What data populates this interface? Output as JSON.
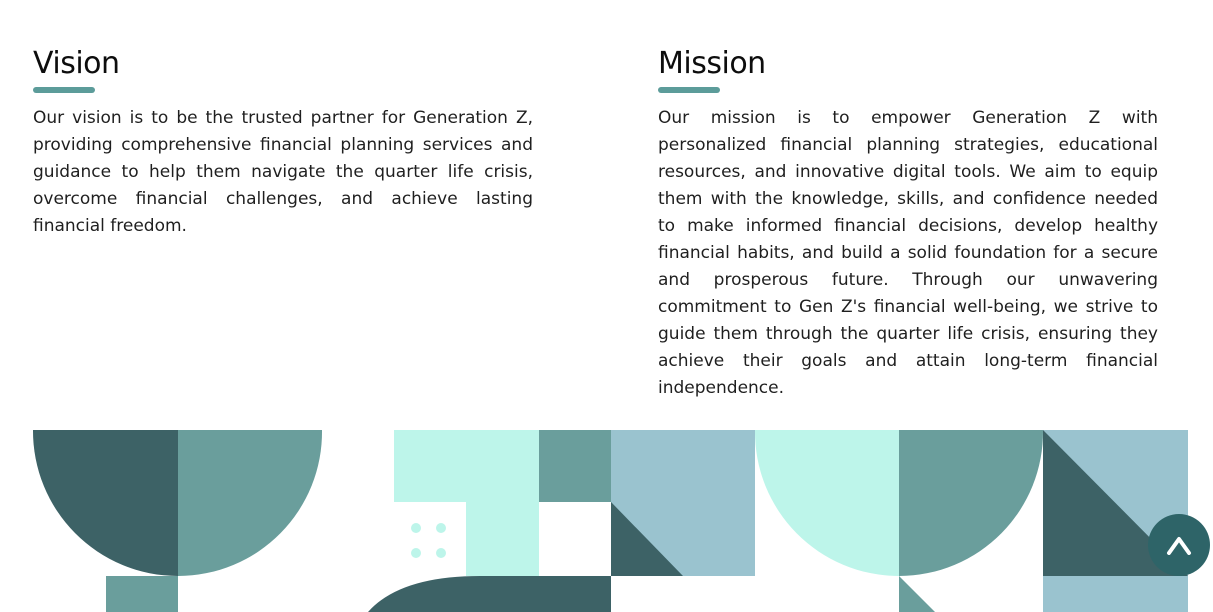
{
  "vision": {
    "title": "Vision",
    "text": "Our vision is to be the trusted partner for Generation Z, providing comprehensive financial planning services and guidance to help them navigate the quarter life crisis, overcome financial challenges, and achieve lasting financial freedom."
  },
  "mission": {
    "title": "Mission",
    "text": "Our mission is to empower Generation Z with personalized financial planning strategies, educational resources, and innovative digital tools. We aim to equip them with the knowledge, skills, and confidence needed to make informed financial decisions, develop healthy financial habits, and build a solid foundation for a secure and prosperous future. Through our unwavering commitment to Gen Z's financial well-being, we strive to guide them through the quarter life crisis, ensuring they achieve their goals and attain long-term financial independence."
  },
  "colors": {
    "accent": "#5c9c9a",
    "dark_teal": "#3d6266",
    "mid_teal": "#6a9e9c",
    "mint": "#bdf5ea",
    "light_blue": "#9ac3cf",
    "button": "#2e6468"
  },
  "back_to_top": {
    "icon": "chevron-up-icon"
  }
}
